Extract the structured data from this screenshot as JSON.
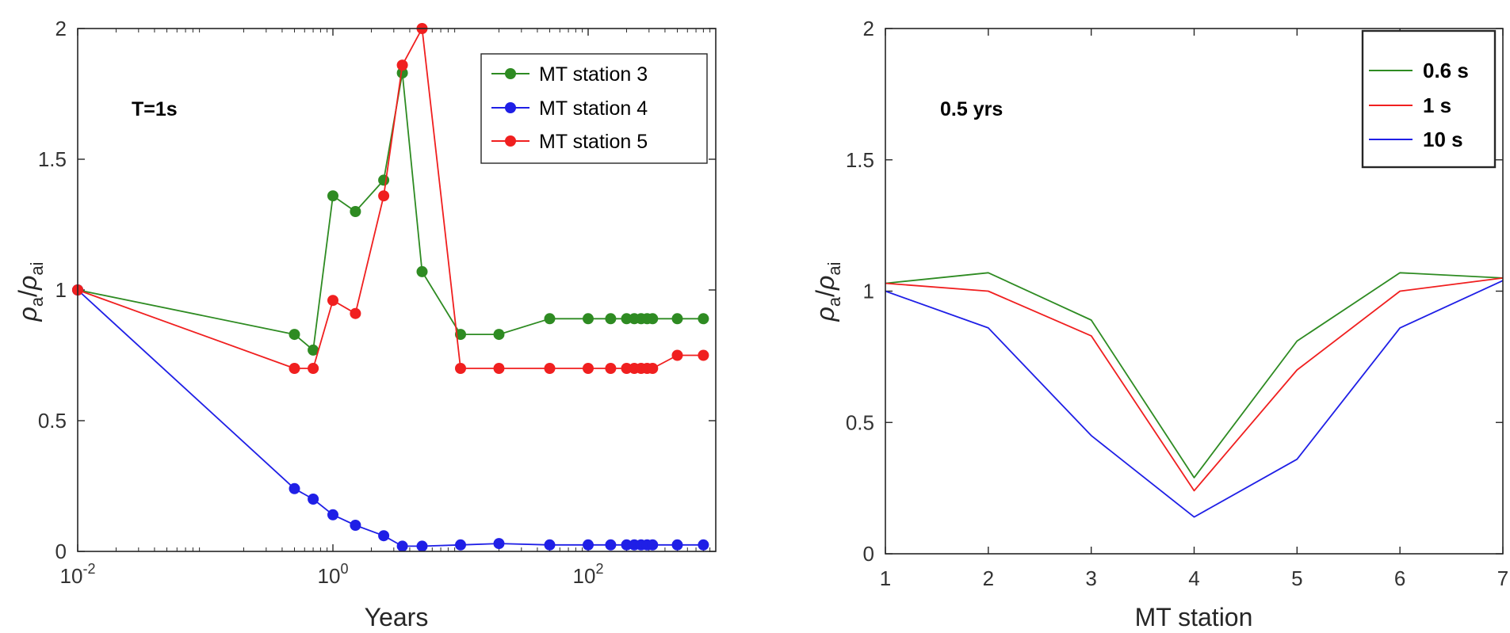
{
  "colors": {
    "green": "#2e8b22",
    "blue": "#1f1fe6",
    "red": "#f01f1f",
    "axis": "#262626",
    "tick_text": "#333333"
  },
  "chart_data": [
    {
      "type": "line",
      "title": "",
      "annotation": "T=1s",
      "xlabel": "Years",
      "ylabel_parts": {
        "rho": "ρ",
        "sub_a": "a",
        "slash": "/",
        "sub_ai": "ai"
      },
      "xscale": "log",
      "xlim": [
        0.01,
        1000
      ],
      "ylim": [
        0,
        2
      ],
      "xticks": [
        {
          "value": 0.01,
          "base": "10",
          "exp": "-2"
        },
        {
          "value": 1,
          "base": "10",
          "exp": "0"
        },
        {
          "value": 100,
          "base": "10",
          "exp": "2"
        }
      ],
      "yticks": [
        {
          "value": 0,
          "label": "0"
        },
        {
          "value": 0.5,
          "label": "0.5"
        },
        {
          "value": 1,
          "label": "1"
        },
        {
          "value": 1.5,
          "label": "1.5"
        },
        {
          "value": 2,
          "label": "2"
        }
      ],
      "legend_position": "top-right",
      "markers": true,
      "series": [
        {
          "name": "MT station 3",
          "color": "#2e8b22",
          "x": [
            0.01,
            0.5,
            0.7,
            1,
            1.5,
            2.5,
            3.5,
            5,
            10,
            20,
            50,
            100,
            150,
            200,
            230,
            260,
            290,
            320,
            500,
            800
          ],
          "y": [
            1.0,
            0.83,
            0.77,
            1.36,
            1.3,
            1.42,
            1.83,
            1.07,
            0.83,
            0.83,
            0.89,
            0.89,
            0.89,
            0.89,
            0.89,
            0.89,
            0.89,
            0.89,
            0.89,
            0.89
          ]
        },
        {
          "name": "MT station 4",
          "color": "#1f1fe6",
          "x": [
            0.01,
            0.5,
            0.7,
            1,
            1.5,
            2.5,
            3.5,
            5,
            10,
            20,
            50,
            100,
            150,
            200,
            230,
            260,
            290,
            320,
            500,
            800
          ],
          "y": [
            1.0,
            0.24,
            0.2,
            0.14,
            0.1,
            0.06,
            0.02,
            0.02,
            0.025,
            0.03,
            0.025,
            0.025,
            0.025,
            0.025,
            0.025,
            0.025,
            0.025,
            0.025,
            0.025,
            0.025
          ]
        },
        {
          "name": "MT station 5",
          "color": "#f01f1f",
          "x": [
            0.01,
            0.5,
            0.7,
            1,
            1.5,
            2.5,
            3.5,
            5,
            10,
            20,
            50,
            100,
            150,
            200,
            230,
            260,
            290,
            320,
            500,
            800
          ],
          "y": [
            1.0,
            0.7,
            0.7,
            0.96,
            0.91,
            1.36,
            1.86,
            2.0,
            0.7,
            0.7,
            0.7,
            0.7,
            0.7,
            0.7,
            0.7,
            0.7,
            0.7,
            0.7,
            0.75,
            0.75
          ]
        }
      ]
    },
    {
      "type": "line",
      "title": "",
      "annotation": "0.5 yrs",
      "xlabel": "MT station",
      "ylabel_parts": {
        "rho": "ρ",
        "sub_a": "a",
        "slash": "/",
        "sub_ai": "ai"
      },
      "xscale": "linear",
      "xlim": [
        1,
        7
      ],
      "ylim": [
        0,
        2
      ],
      "xticks": [
        {
          "value": 1,
          "label": "1"
        },
        {
          "value": 2,
          "label": "2"
        },
        {
          "value": 3,
          "label": "3"
        },
        {
          "value": 4,
          "label": "4"
        },
        {
          "value": 5,
          "label": "5"
        },
        {
          "value": 6,
          "label": "6"
        },
        {
          "value": 7,
          "label": "7"
        }
      ],
      "yticks": [
        {
          "value": 0,
          "label": "0"
        },
        {
          "value": 0.5,
          "label": "0.5"
        },
        {
          "value": 1,
          "label": "1"
        },
        {
          "value": 1.5,
          "label": "1.5"
        },
        {
          "value": 2,
          "label": "2"
        }
      ],
      "legend_position": "top-right",
      "legend_bold": true,
      "markers": false,
      "series": [
        {
          "name": "0.6 s",
          "color": "#2e8b22",
          "x": [
            1,
            2,
            3,
            4,
            5,
            6,
            7
          ],
          "y": [
            1.03,
            1.07,
            0.89,
            0.29,
            0.81,
            1.07,
            1.05
          ]
        },
        {
          "name": "1 s",
          "color": "#f01f1f",
          "x": [
            1,
            2,
            3,
            4,
            5,
            6,
            7
          ],
          "y": [
            1.03,
            1.0,
            0.83,
            0.24,
            0.7,
            1.0,
            1.05
          ]
        },
        {
          "name": "10 s",
          "color": "#1f1fe6",
          "x": [
            1,
            2,
            3,
            4,
            5,
            6,
            7
          ],
          "y": [
            1.0,
            0.86,
            0.45,
            0.14,
            0.36,
            0.86,
            1.04
          ]
        }
      ]
    }
  ]
}
